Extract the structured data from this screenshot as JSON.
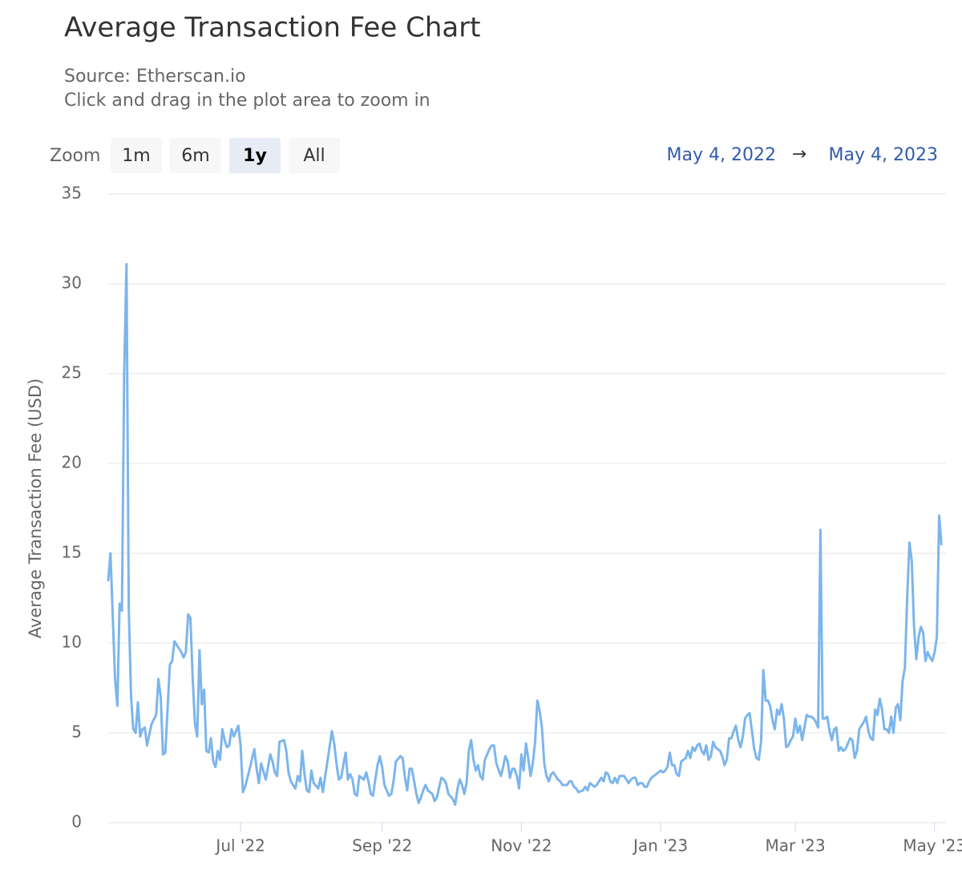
{
  "chart_data": {
    "type": "line",
    "title": "Average Transaction Fee Chart",
    "subtitle": "Source: Etherscan.io",
    "hint": "Click and drag in the plot area to zoom in",
    "zoom": {
      "label": "Zoom",
      "buttons": [
        "1m",
        "6m",
        "1y",
        "All"
      ],
      "selected": 2
    },
    "range": {
      "from": "May 4, 2022",
      "arrow": "→",
      "to": "May 4, 2023"
    },
    "y_label": "Average Transaction Fee (USD)",
    "color": "#7cb5ec",
    "grid": true,
    "ylim": [
      0,
      35
    ],
    "yticks": [
      0,
      5,
      10,
      15,
      20,
      25,
      30,
      35
    ],
    "xlim": [
      "2022-05-04",
      "2023-05-06"
    ],
    "xticks": [
      {
        "value": "2022-07-01",
        "label": "Jul '22"
      },
      {
        "value": "2022-09-01",
        "label": "Sep '22"
      },
      {
        "value": "2022-11-01",
        "label": "Nov '22"
      },
      {
        "value": "2023-01-01",
        "label": "Jan '23"
      },
      {
        "value": "2023-03-01",
        "label": "Mar '23"
      },
      {
        "value": "2023-05-01",
        "label": "May '23"
      }
    ],
    "x": [
      "2022-05-04",
      "2022-05-05",
      "2022-05-07",
      "2022-05-08",
      "2022-05-09",
      "2022-05-10",
      "2022-05-11",
      "2022-05-12",
      "2022-05-13",
      "2022-05-14",
      "2022-05-15",
      "2022-05-16",
      "2022-05-17",
      "2022-05-18",
      "2022-05-19",
      "2022-05-20",
      "2022-05-21",
      "2022-05-23",
      "2022-05-25",
      "2022-05-26",
      "2022-05-27",
      "2022-05-28",
      "2022-05-29",
      "2022-05-31",
      "2022-06-01",
      "2022-06-02",
      "2022-06-03",
      "2022-06-05",
      "2022-06-06",
      "2022-06-07",
      "2022-06-08",
      "2022-06-09",
      "2022-06-10",
      "2022-06-11",
      "2022-06-12",
      "2022-06-13",
      "2022-06-14",
      "2022-06-15",
      "2022-06-16",
      "2022-06-17",
      "2022-06-18",
      "2022-06-19",
      "2022-06-20",
      "2022-06-21",
      "2022-06-22",
      "2022-06-23",
      "2022-06-24",
      "2022-06-25",
      "2022-06-26",
      "2022-06-27",
      "2022-06-28",
      "2022-06-30",
      "2022-07-01",
      "2022-07-02",
      "2022-07-03",
      "2022-07-05",
      "2022-07-07",
      "2022-07-08",
      "2022-07-09",
      "2022-07-10",
      "2022-07-12",
      "2022-07-14",
      "2022-07-15",
      "2022-07-16",
      "2022-07-17",
      "2022-07-18",
      "2022-07-20",
      "2022-07-21",
      "2022-07-22",
      "2022-07-23",
      "2022-07-24",
      "2022-07-25",
      "2022-07-26",
      "2022-07-27",
      "2022-07-28",
      "2022-07-29",
      "2022-07-30",
      "2022-07-31",
      "2022-08-01",
      "2022-08-02",
      "2022-08-04",
      "2022-08-05",
      "2022-08-06",
      "2022-08-08",
      "2022-08-10",
      "2022-08-11",
      "2022-08-12",
      "2022-08-13",
      "2022-08-14",
      "2022-08-16",
      "2022-08-17",
      "2022-08-18",
      "2022-08-19",
      "2022-08-20",
      "2022-08-21",
      "2022-08-22",
      "2022-08-23",
      "2022-08-24",
      "2022-08-25",
      "2022-08-26",
      "2022-08-27",
      "2022-08-28",
      "2022-08-29",
      "2022-08-30",
      "2022-08-31",
      "2022-09-01",
      "2022-09-02",
      "2022-09-04",
      "2022-09-05",
      "2022-09-06",
      "2022-09-07",
      "2022-09-09",
      "2022-09-10",
      "2022-09-11",
      "2022-09-12",
      "2022-09-13",
      "2022-09-14",
      "2022-09-15",
      "2022-09-16",
      "2022-09-17",
      "2022-09-18",
      "2022-09-19",
      "2022-09-20",
      "2022-09-21",
      "2022-09-23",
      "2022-09-24",
      "2022-09-25",
      "2022-09-26",
      "2022-09-27",
      "2022-09-28",
      "2022-09-29",
      "2022-09-30",
      "2022-10-02",
      "2022-10-03",
      "2022-10-04",
      "2022-10-05",
      "2022-10-06",
      "2022-10-07",
      "2022-10-08",
      "2022-10-09",
      "2022-10-10",
      "2022-10-11",
      "2022-10-12",
      "2022-10-13",
      "2022-10-14",
      "2022-10-15",
      "2022-10-16",
      "2022-10-17",
      "2022-10-18",
      "2022-10-19",
      "2022-10-20",
      "2022-10-21",
      "2022-10-23",
      "2022-10-24",
      "2022-10-25",
      "2022-10-26",
      "2022-10-27",
      "2022-10-28",
      "2022-10-29",
      "2022-10-30",
      "2022-10-31",
      "2022-11-01",
      "2022-11-02",
      "2022-11-03",
      "2022-11-04",
      "2022-11-05",
      "2022-11-06",
      "2022-11-07",
      "2022-11-08",
      "2022-11-09",
      "2022-11-10",
      "2022-11-11",
      "2022-11-12",
      "2022-11-13",
      "2022-11-14",
      "2022-11-15",
      "2022-11-17",
      "2022-11-18",
      "2022-11-19",
      "2022-11-20",
      "2022-11-21",
      "2022-11-22",
      "2022-11-23",
      "2022-11-24",
      "2022-11-25",
      "2022-11-26",
      "2022-11-28",
      "2022-11-29",
      "2022-11-30",
      "2022-12-01",
      "2022-12-02",
      "2022-12-03",
      "2022-12-04",
      "2022-12-05",
      "2022-12-06",
      "2022-12-07",
      "2022-12-08",
      "2022-12-09",
      "2022-12-10",
      "2022-12-11",
      "2022-12-12",
      "2022-12-13",
      "2022-12-14",
      "2022-12-15",
      "2022-12-16",
      "2022-12-17",
      "2022-12-18",
      "2022-12-19",
      "2022-12-20",
      "2022-12-21",
      "2022-12-22",
      "2022-12-23",
      "2022-12-24",
      "2022-12-25",
      "2022-12-26",
      "2022-12-27",
      "2022-12-28",
      "2022-12-29",
      "2022-12-30",
      "2022-12-31",
      "2023-01-01",
      "2023-01-02",
      "2023-01-03",
      "2023-01-04",
      "2023-01-05",
      "2023-01-06",
      "2023-01-07",
      "2023-01-08",
      "2023-01-09",
      "2023-01-10",
      "2023-01-11",
      "2023-01-12",
      "2023-01-13",
      "2023-01-14",
      "2023-01-15",
      "2023-01-16",
      "2023-01-17",
      "2023-01-18",
      "2023-01-19",
      "2023-01-20",
      "2023-01-21",
      "2023-01-22",
      "2023-01-23",
      "2023-01-24",
      "2023-01-25",
      "2023-01-26",
      "2023-01-27",
      "2023-01-28",
      "2023-01-29",
      "2023-01-30",
      "2023-01-31",
      "2023-02-01",
      "2023-02-02",
      "2023-02-03",
      "2023-02-04",
      "2023-02-05",
      "2023-02-06",
      "2023-02-07",
      "2023-02-08",
      "2023-02-09",
      "2023-02-10",
      "2023-02-11",
      "2023-02-12",
      "2023-02-13",
      "2023-02-14",
      "2023-02-15",
      "2023-02-16",
      "2023-02-17",
      "2023-02-18",
      "2023-02-19",
      "2023-02-20",
      "2023-02-21",
      "2023-02-22",
      "2023-02-23",
      "2023-02-24",
      "2023-02-25",
      "2023-02-26",
      "2023-02-27",
      "2023-02-28",
      "2023-03-01",
      "2023-03-02",
      "2023-03-03",
      "2023-03-04",
      "2023-03-05",
      "2023-03-06",
      "2023-03-07",
      "2023-03-08",
      "2023-03-09",
      "2023-03-10",
      "2023-03-11",
      "2023-03-12",
      "2023-03-13",
      "2023-03-14",
      "2023-03-15",
      "2023-03-16",
      "2023-03-17",
      "2023-03-18",
      "2023-03-19",
      "2023-03-20",
      "2023-03-21",
      "2023-03-22",
      "2023-03-23",
      "2023-03-24",
      "2023-03-25",
      "2023-03-26",
      "2023-03-27",
      "2023-03-28",
      "2023-03-29",
      "2023-03-30",
      "2023-03-31",
      "2023-04-01",
      "2023-04-02",
      "2023-04-03",
      "2023-04-04",
      "2023-04-05",
      "2023-04-06",
      "2023-04-07",
      "2023-04-08",
      "2023-04-09",
      "2023-04-10",
      "2023-04-11",
      "2023-04-12",
      "2023-04-13",
      "2023-04-14",
      "2023-04-15",
      "2023-04-16",
      "2023-04-17",
      "2023-04-18",
      "2023-04-19",
      "2023-04-20",
      "2023-04-21",
      "2023-04-22",
      "2023-04-23",
      "2023-04-24",
      "2023-04-25",
      "2023-04-26",
      "2023-04-27",
      "2023-04-28",
      "2023-04-29",
      "2023-04-30",
      "2023-05-01",
      "2023-05-02",
      "2023-05-03",
      "2023-05-04"
    ],
    "values": [
      13.5,
      15,
      8,
      6.5,
      12.2,
      11.8,
      25,
      31.1,
      12,
      7,
      5.2,
      5,
      6.7,
      4.8,
      5.2,
      5.3,
      4.3,
      5.5,
      6,
      8,
      7,
      3.8,
      3.9,
      8.8,
      9,
      10.1,
      9.9,
      9.5,
      9.2,
      9.5,
      11.6,
      11.4,
      8,
      5.5,
      4.8,
      9.6,
      6.6,
      7.4,
      4,
      3.9,
      4.7,
      3.4,
      3.1,
      4,
      3.5,
      5.2,
      4.6,
      4.2,
      4.3,
      5.2,
      4.8,
      5.4,
      4.3,
      1.7,
      2,
      3,
      4.1,
      3,
      2.2,
      3.3,
      2.4,
      3.8,
      3.4,
      2.8,
      2.6,
      4.5,
      4.6,
      4,
      2.8,
      2.3,
      2.1,
      1.9,
      2.6,
      2.3,
      4,
      2.7,
      1.8,
      1.7,
      2.9,
      2.2,
      1.9,
      2.5,
      1.7,
      3.4,
      5.1,
      4.4,
      3.3,
      2.4,
      2.5,
      3.9,
      2.4,
      2.7,
      2.4,
      1.6,
      1.5,
      2.6,
      2.5,
      2.4,
      2.8,
      2.3,
      1.6,
      1.5,
      2.4,
      3.2,
      3.7,
      3.1,
      2.1,
      1.5,
      1.6,
      2.3,
      3.4,
      3.7,
      3.6,
      2.5,
      1.8,
      3,
      3,
      2.3,
      1.6,
      1.1,
      1.4,
      1.8,
      2.1,
      1.8,
      1.6,
      1.2,
      1.4,
      2,
      2.5,
      2.4,
      2.2,
      1.6,
      1.3,
      1,
      1.9,
      2.4,
      2.1,
      1.6,
      2.2,
      4,
      4.6,
      3.5,
      2.9,
      3.2,
      2.6,
      2.4,
      3.5,
      3.8,
      4.1,
      4.3,
      4.3,
      3.3,
      2.6,
      3.1,
      3.7,
      3.4,
      2.5,
      3,
      3,
      2.6,
      1.9,
      3.8,
      2.9,
      4.4,
      3.6,
      2.6,
      3.3,
      4.5,
      6.8,
      6.2,
      5.3,
      3.3,
      2.6,
      2.3,
      2.7,
      2.8,
      2.4,
      2.3,
      2.1,
      2.1,
      2.1,
      2.3,
      2.3,
      2,
      1.9,
      1.7,
      1.8,
      2,
      1.8,
      2.2,
      2.1,
      2,
      2.1,
      2.3,
      2.5,
      2.3,
      2.8,
      2.7,
      2.3,
      2.2,
      2.5,
      2.2,
      2.6,
      2.6,
      2.6,
      2.4,
      2.2,
      2.4,
      2.5,
      2.5,
      2.1,
      2.2,
      2.2,
      2,
      2,
      2.3,
      2.5,
      2.6,
      2.7,
      2.8,
      2.9,
      2.8,
      2.9,
      3.1,
      3.9,
      3.2,
      3.2,
      2.7,
      2.6,
      3.4,
      3.5,
      3.6,
      4,
      3.6,
      4.2,
      4,
      4.3,
      4.4,
      4,
      3.8,
      4.3,
      3.5,
      3.7,
      4.5,
      4.2,
      4.1,
      4,
      3.7,
      3.2,
      3.5,
      4.7,
      4.7,
      5.1,
      5.4,
      4.6,
      4.2,
      4.8,
      5.8,
      6,
      6.1,
      5.1,
      4.1,
      3.6,
      3.5,
      4.5,
      8.5,
      6.8,
      6.8,
      6.5,
      5.7,
      5.2,
      6.3,
      6,
      6.6,
      5.8,
      4.2,
      4.3,
      4.6,
      4.8,
      5.8,
      5,
      5.4,
      4.6,
      5.3,
      6,
      5.9,
      5.9,
      5.8,
      5.6,
      5.3,
      16.3,
      5.8,
      5.8,
      5.9,
      5.1,
      4.6,
      5.2,
      5.3,
      4,
      4.2,
      4,
      4.1,
      4.4,
      4.7,
      4.6,
      3.6,
      4,
      5.2,
      5.4,
      5.6,
      5.9,
      5.1,
      4.7,
      4.6,
      6.3,
      6,
      6.9,
      6.3,
      5.2,
      5.2,
      5,
      5.9,
      5,
      6.4,
      6.6,
      5.7,
      7.9,
      8.6,
      12.5,
      15.6,
      14.6,
      11,
      9.1,
      10.3,
      10.9,
      10.6,
      9,
      9.5,
      9.2,
      9,
      9.5,
      10.3,
      17.1,
      15.5
    ]
  }
}
